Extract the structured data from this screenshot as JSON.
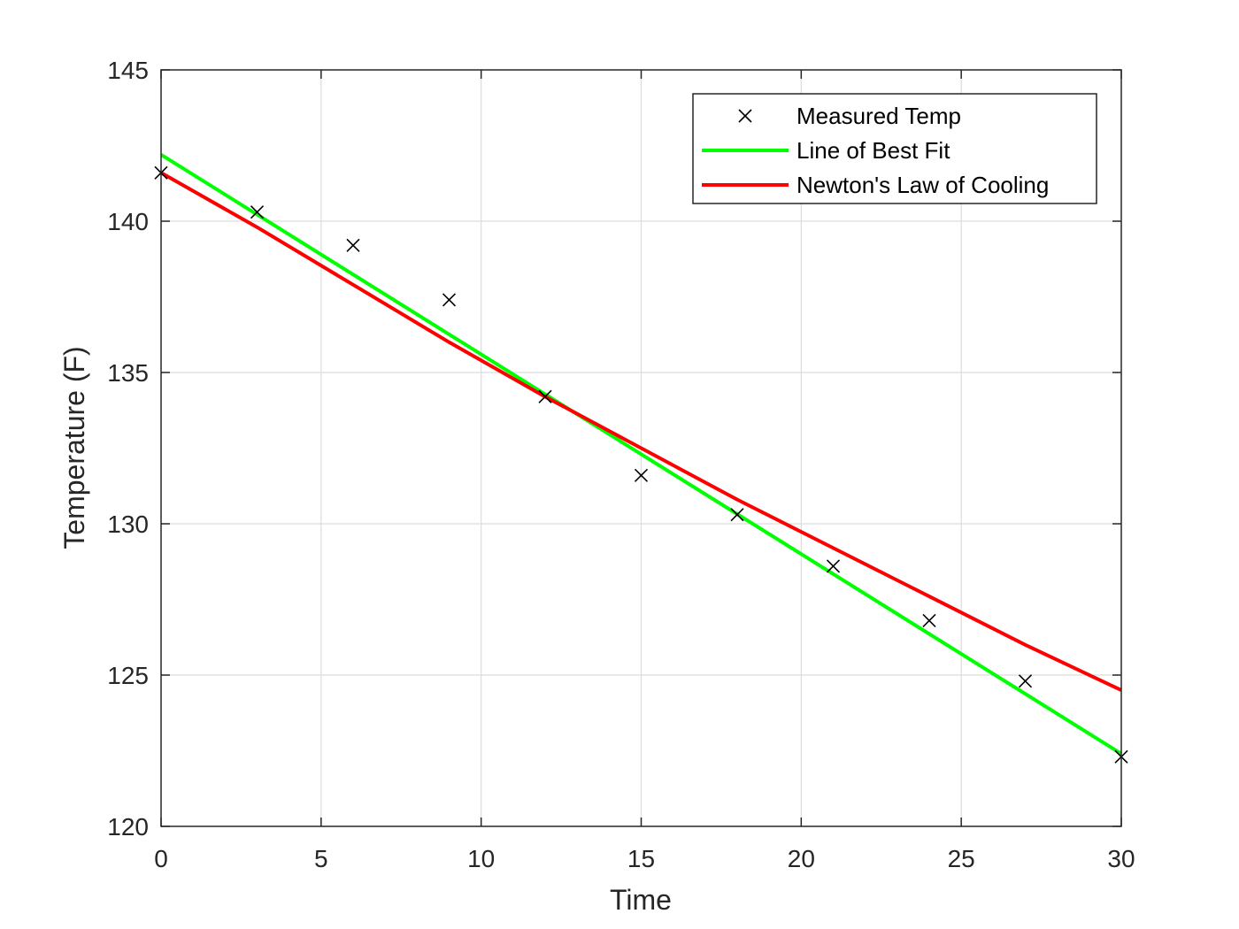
{
  "chart_data": {
    "type": "line",
    "title": "",
    "xlabel": "Time",
    "ylabel": "Temperature (F)",
    "xlim": [
      0,
      30
    ],
    "ylim": [
      120,
      145
    ],
    "xticks": [
      0,
      5,
      10,
      15,
      20,
      25,
      30
    ],
    "yticks": [
      120,
      125,
      130,
      135,
      140,
      145
    ],
    "grid": true,
    "legend_position": "top-right",
    "series": [
      {
        "name": "Measured Temp",
        "style": "markers",
        "marker": "x",
        "color": "#000000",
        "x": [
          0,
          3,
          6,
          9,
          12,
          15,
          18,
          21,
          24,
          27,
          30
        ],
        "y": [
          141.6,
          140.3,
          139.2,
          137.4,
          134.2,
          131.6,
          130.3,
          128.6,
          126.8,
          124.8,
          122.3
        ]
      },
      {
        "name": "Line of Best Fit",
        "style": "line",
        "color": "#00ff00",
        "x": [
          0,
          30
        ],
        "y": [
          142.2,
          122.4
        ]
      },
      {
        "name": "Newton's Law of Cooling",
        "style": "line",
        "color": "#ff0000",
        "x": [
          0,
          3,
          6,
          9,
          12,
          15,
          18,
          21,
          24,
          27,
          30
        ],
        "y": [
          141.6,
          139.8,
          137.9,
          136.0,
          134.2,
          132.5,
          130.8,
          129.2,
          127.6,
          126.0,
          124.5
        ]
      }
    ]
  }
}
